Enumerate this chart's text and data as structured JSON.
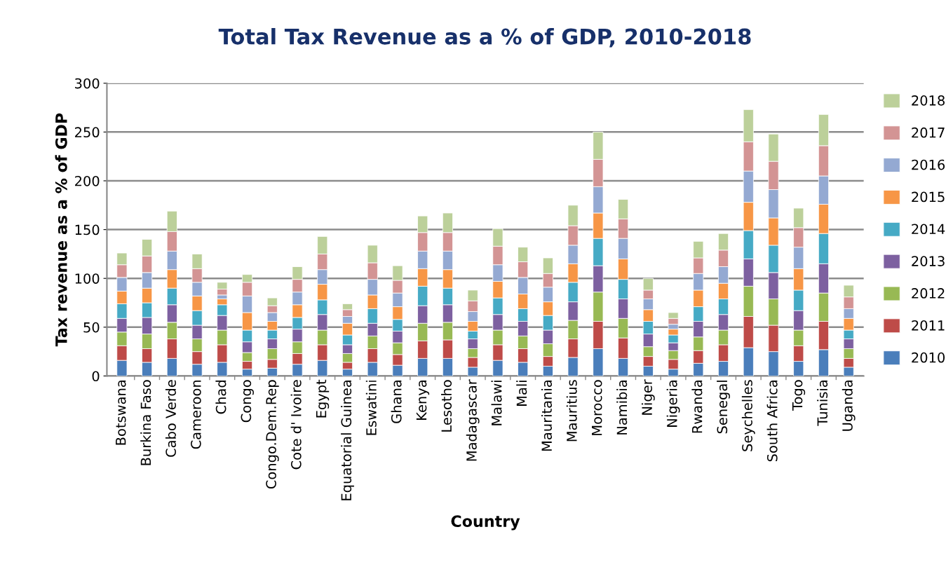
{
  "chart_data": {
    "type": "bar",
    "stacked": true,
    "title": "Total Tax Revenue as a % of GDP, 2010-2018",
    "xlabel": "Country",
    "ylabel": "Tax revenue as a % of GDP",
    "categories": [
      "Botswana",
      "Burkina Faso",
      "Cabo Verde",
      "Cameroon",
      "Chad",
      "Congo",
      "Congo.Dem.Rep",
      "Cote d' Ivoire",
      "Egypt",
      "Equatorial Guinea",
      "Eswatini",
      "Ghana",
      "Kenya",
      "Lesotho",
      "Madagascar",
      "Malawi",
      "Mali",
      "Mauritania",
      "Mauritius",
      "Morocco",
      "Namibia",
      "Niger",
      "Nigeria",
      "Rwanda",
      "Senegal",
      "Seychelles",
      "South Africa",
      "Togo",
      "Tunisia",
      "Uganda"
    ],
    "series": [
      {
        "name": "2010",
        "color": "#4a7ebb",
        "values": [
          16,
          14,
          18,
          12,
          14,
          7,
          8,
          12,
          16,
          7,
          14,
          11,
          18,
          18,
          9,
          16,
          14,
          10,
          19,
          28,
          18,
          10,
          7,
          13,
          15,
          29,
          25,
          15,
          27,
          9
        ]
      },
      {
        "name": "2011",
        "color": "#be4b48",
        "values": [
          15,
          14,
          20,
          13,
          18,
          8,
          9,
          11,
          16,
          7,
          14,
          11,
          18,
          19,
          10,
          16,
          14,
          10,
          19,
          28,
          21,
          10,
          10,
          13,
          17,
          32,
          27,
          16,
          29,
          9
        ]
      },
      {
        "name": "2012",
        "color": "#98b954",
        "values": [
          14,
          15,
          17,
          13,
          15,
          9,
          11,
          12,
          15,
          9,
          13,
          12,
          18,
          18,
          9,
          15,
          13,
          13,
          19,
          30,
          20,
          10,
          9,
          14,
          15,
          31,
          27,
          16,
          29,
          10
        ]
      },
      {
        "name": "2013",
        "color": "#7d60a0",
        "values": [
          14,
          17,
          18,
          14,
          15,
          11,
          10,
          13,
          16,
          9,
          13,
          12,
          18,
          18,
          10,
          16,
          15,
          14,
          19,
          27,
          20,
          13,
          8,
          16,
          16,
          28,
          27,
          20,
          30,
          10
        ]
      },
      {
        "name": "2014",
        "color": "#46aac5",
        "values": [
          15,
          15,
          17,
          15,
          11,
          12,
          9,
          12,
          15,
          10,
          15,
          12,
          20,
          17,
          8,
          17,
          13,
          15,
          20,
          28,
          20,
          13,
          8,
          15,
          16,
          29,
          28,
          21,
          31,
          9
        ]
      },
      {
        "name": "2015",
        "color": "#f79646",
        "values": [
          13,
          15,
          19,
          15,
          6,
          18,
          9,
          13,
          16,
          12,
          14,
          13,
          18,
          19,
          10,
          17,
          15,
          14,
          19,
          26,
          21,
          12,
          6,
          17,
          16,
          29,
          28,
          22,
          30,
          12
        ]
      },
      {
        "name": "2016",
        "color": "#94a9d2",
        "values": [
          14,
          16,
          19,
          14,
          4,
          17,
          9,
          13,
          15,
          7,
          16,
          14,
          18,
          19,
          10,
          17,
          17,
          15,
          19,
          27,
          21,
          11,
          5,
          17,
          17,
          32,
          29,
          22,
          29,
          10
        ]
      },
      {
        "name": "2017",
        "color": "#d39494",
        "values": [
          13,
          17,
          20,
          14,
          6,
          14,
          7,
          13,
          16,
          7,
          17,
          13,
          19,
          19,
          11,
          19,
          16,
          14,
          20,
          28,
          20,
          9,
          6,
          16,
          17,
          30,
          29,
          20,
          31,
          12
        ]
      },
      {
        "name": "2018",
        "color": "#bcd09a",
        "values": [
          12,
          17,
          21,
          15,
          7,
          8,
          8,
          13,
          18,
          6,
          18,
          15,
          17,
          20,
          11,
          18,
          15,
          16,
          21,
          28,
          20,
          12,
          6,
          17,
          17,
          33,
          28,
          20,
          32,
          12
        ]
      }
    ],
    "ylim": [
      0,
      300
    ],
    "yticks": [
      0,
      50,
      100,
      150,
      200,
      250,
      300
    ],
    "grid": "y",
    "legend": "right"
  }
}
